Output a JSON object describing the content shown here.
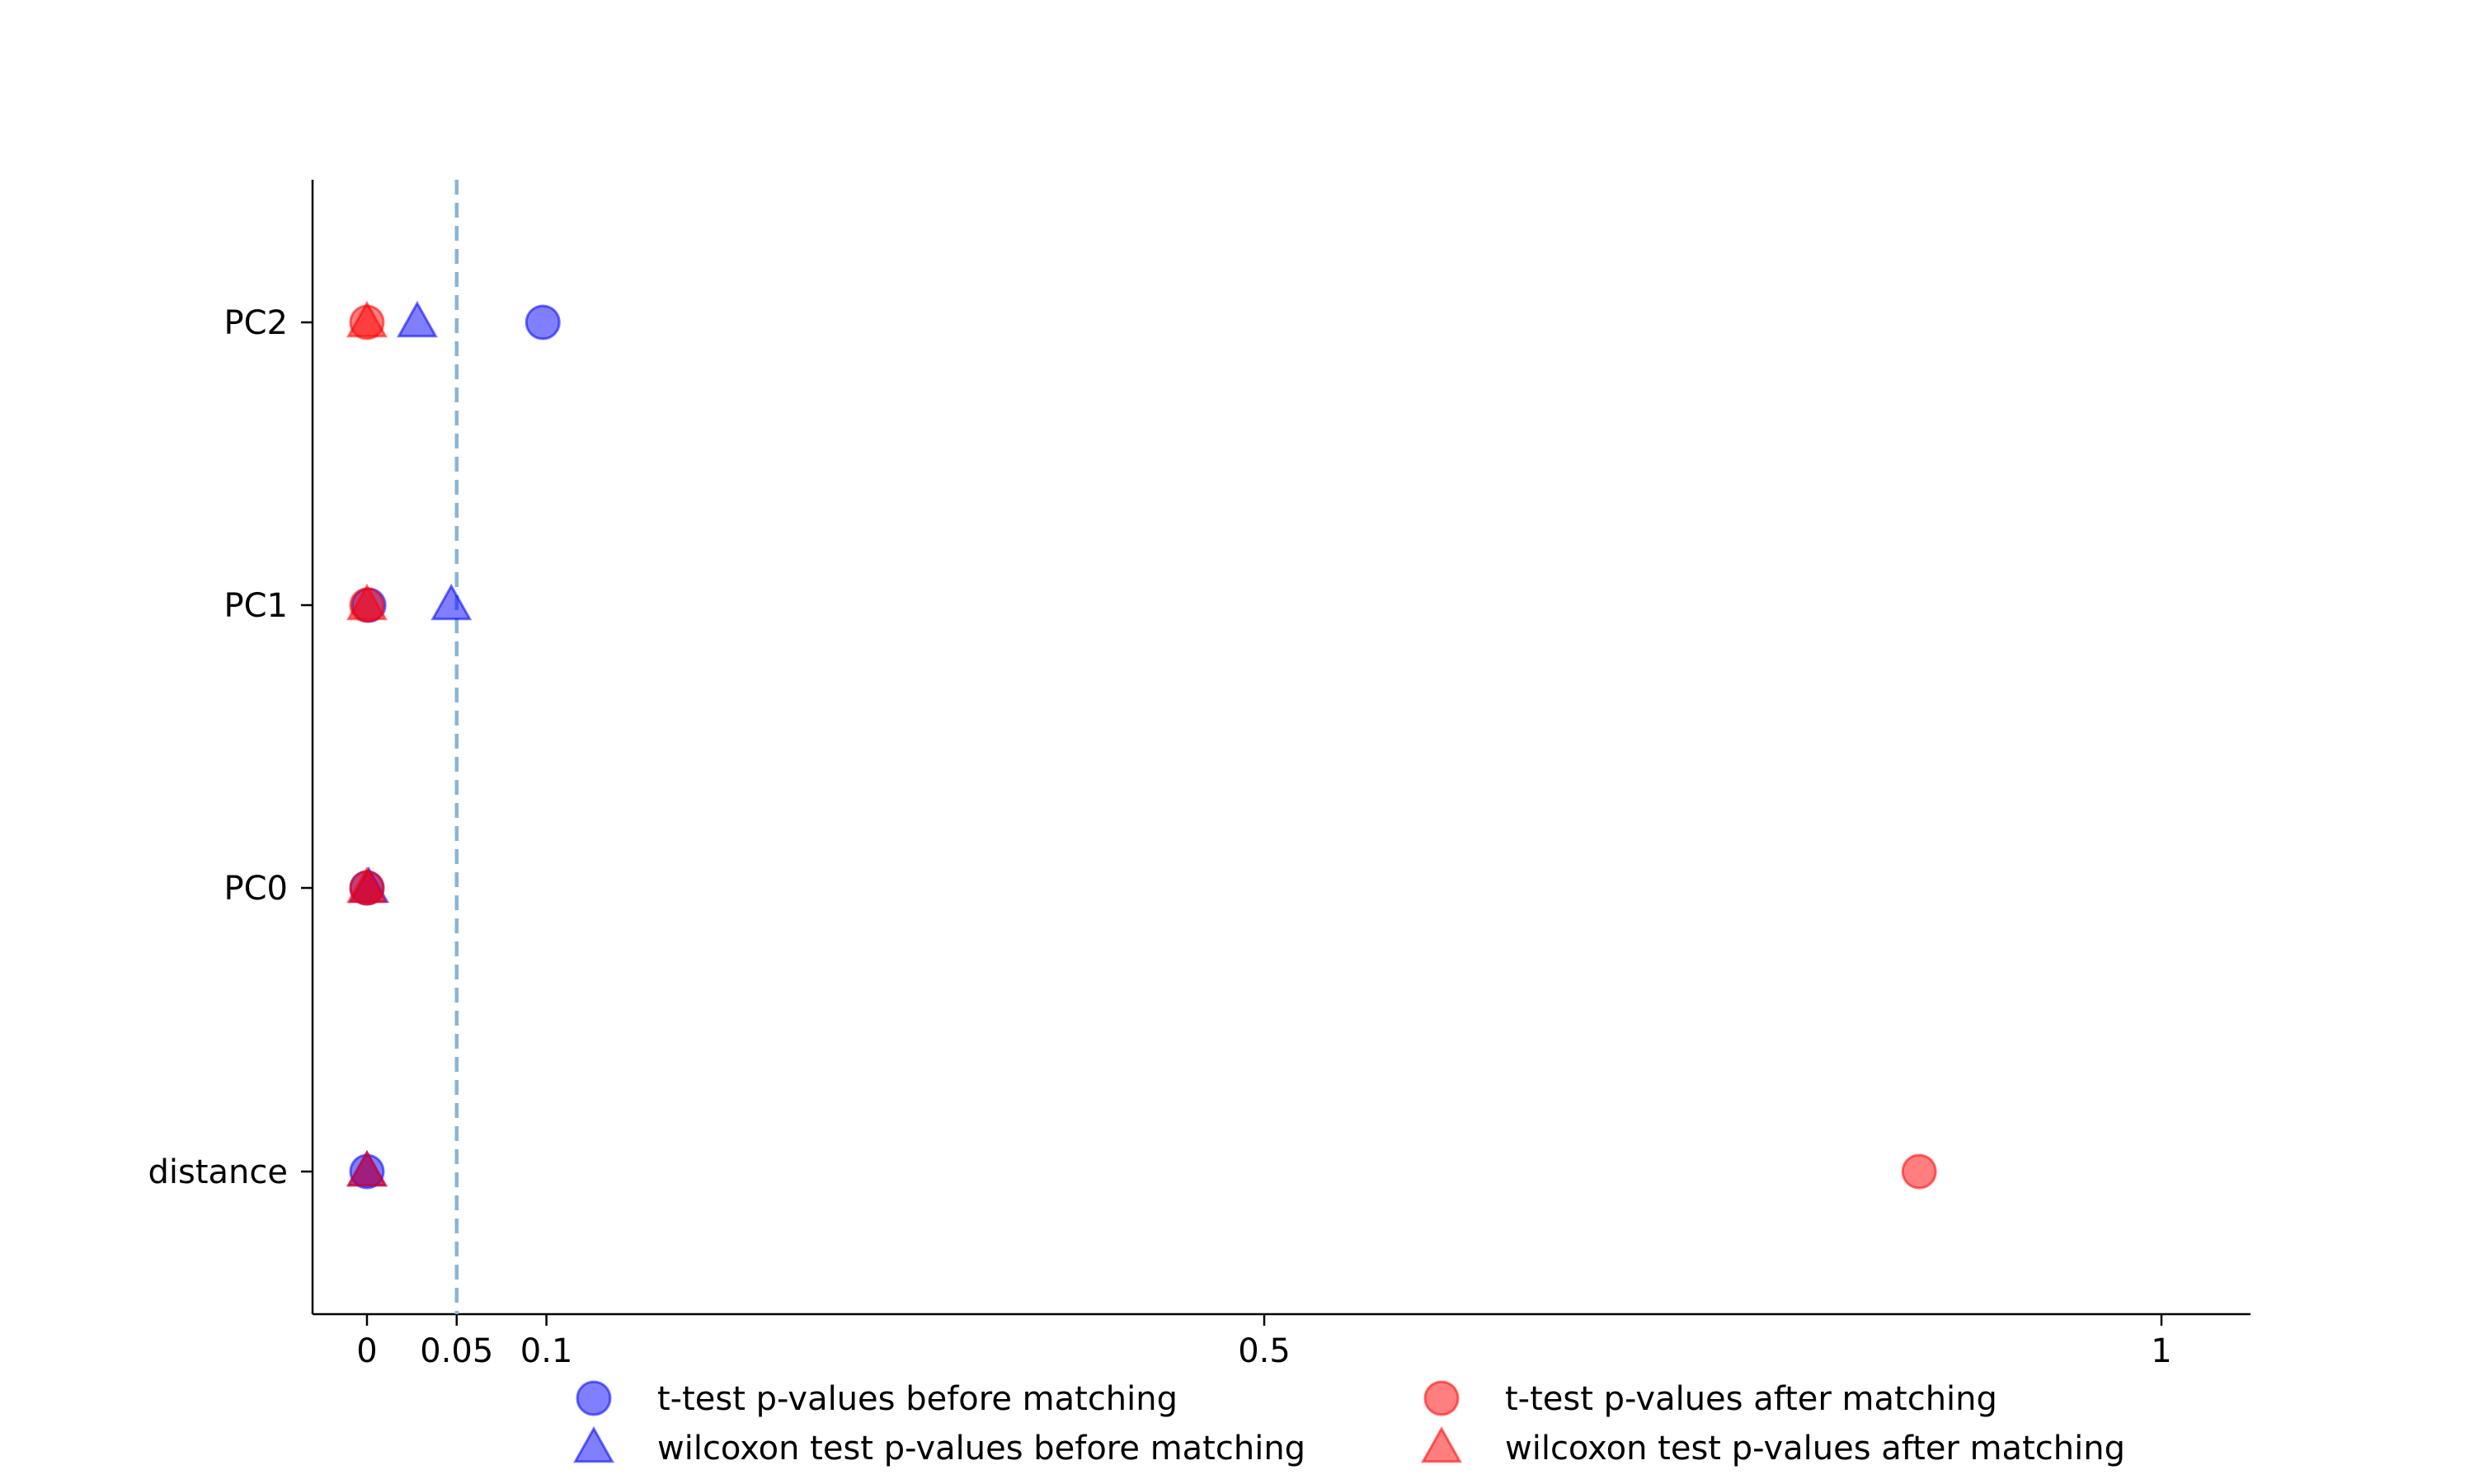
{
  "chart_data": {
    "type": "scatter",
    "title": "",
    "xlabel": "",
    "ylabel": "",
    "categories": [
      "distance",
      "PC0",
      "PC1",
      "PC2"
    ],
    "xlim": [
      -0.03,
      1.05
    ],
    "x_ticks": [
      {
        "value": 0,
        "label": "0"
      },
      {
        "value": 0.05,
        "label": "0.05"
      },
      {
        "value": 0.1,
        "label": "0.1"
      },
      {
        "value": 0.5,
        "label": "0.5"
      },
      {
        "value": 1,
        "label": "1"
      }
    ],
    "threshold": 0.05,
    "threshold_color": "#8ab4d8",
    "legend_position": "bottom",
    "series": [
      {
        "name": "t-test p-values before matching",
        "marker": "circle",
        "color": "#0000ff",
        "values": [
          0.0,
          0.0,
          0.001,
          0.098
        ]
      },
      {
        "name": "wilcoxon test p-values before matching",
        "marker": "triangle",
        "color": "#0000ff",
        "values": [
          0.0,
          0.001,
          0.047,
          0.028
        ]
      },
      {
        "name": "t-test p-values after matching",
        "marker": "circle",
        "color": "#ff0000",
        "values": [
          0.865,
          0.0,
          0.0,
          0.0
        ]
      },
      {
        "name": "wilcoxon test p-values after matching",
        "marker": "triangle",
        "color": "#ff0000",
        "values": [
          0.0,
          0.0,
          0.0,
          0.0
        ]
      }
    ]
  }
}
